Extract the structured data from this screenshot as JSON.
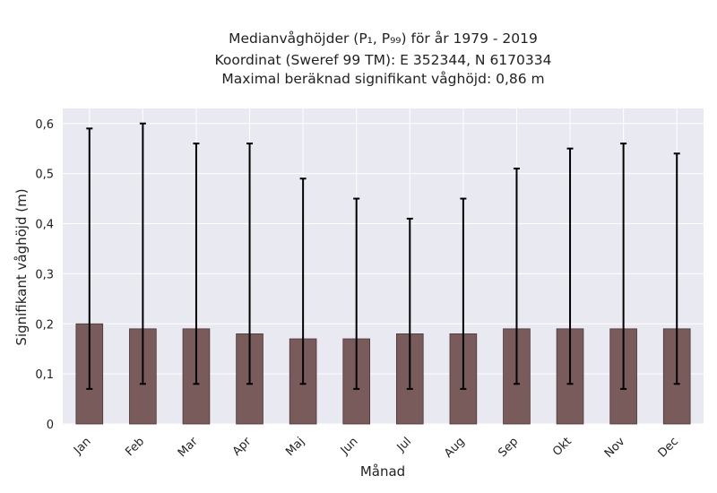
{
  "chart_data": {
    "type": "bar",
    "title_lines": [
      "Medianvåghöjder (P₁, P₉₉) för år 1979 - 2019",
      "Koordinat (Sweref 99 TM): E 352344, N 6170334",
      "Maximal beräknad signifikant våghöjd: 0,86 m"
    ],
    "xlabel": "Månad",
    "ylabel": "Signifikant våghöjd (m)",
    "categories": [
      "Jan",
      "Feb",
      "Mar",
      "Apr",
      "Maj",
      "Jun",
      "Jul",
      "Aug",
      "Sep",
      "Okt",
      "Nov",
      "Dec"
    ],
    "values": [
      0.2,
      0.19,
      0.19,
      0.18,
      0.17,
      0.17,
      0.18,
      0.18,
      0.19,
      0.19,
      0.19,
      0.19
    ],
    "p1": [
      0.07,
      0.08,
      0.08,
      0.08,
      0.08,
      0.07,
      0.07,
      0.07,
      0.08,
      0.08,
      0.07,
      0.08
    ],
    "p99": [
      0.59,
      0.6,
      0.56,
      0.56,
      0.49,
      0.45,
      0.41,
      0.45,
      0.51,
      0.55,
      0.56,
      0.54
    ],
    "ylim": [
      0,
      0.63
    ],
    "yticks": [
      0,
      0.1,
      0.2,
      0.3,
      0.4,
      0.5,
      0.6
    ],
    "ytick_labels": [
      "0",
      "0,1",
      "0,2",
      "0,3",
      "0,4",
      "0,5",
      "0,6"
    ],
    "grid": true,
    "colors": {
      "bar": "#7a5b5b",
      "bar_edge": "#4a3535",
      "background": "#e9e9f1",
      "grid": "#ffffff",
      "errorbar": "#000000"
    }
  }
}
